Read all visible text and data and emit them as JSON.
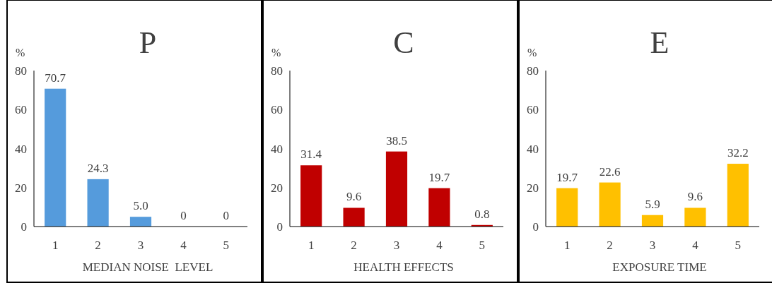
{
  "chart_data": [
    {
      "type": "bar",
      "title": "P",
      "xlabel": "MEDIAN NOISE  LEVEL",
      "ylabel": "%",
      "categories": [
        "1",
        "2",
        "3",
        "4",
        "5"
      ],
      "values": [
        70.7,
        24.3,
        5.0,
        0,
        0
      ],
      "value_labels": [
        "70.7",
        "24.3",
        "5.0",
        "0",
        "0"
      ],
      "color": "#559bdc",
      "ylim": [
        0,
        80
      ],
      "yticks": [
        0,
        20,
        40,
        60,
        80
      ],
      "grid": false
    },
    {
      "type": "bar",
      "title": "C",
      "xlabel": "HEALTH EFFECTS",
      "ylabel": "%",
      "categories": [
        "1",
        "2",
        "3",
        "4",
        "5"
      ],
      "values": [
        31.4,
        9.6,
        38.5,
        19.7,
        0.8
      ],
      "value_labels": [
        "31.4",
        "9.6",
        "38.5",
        "19.7",
        "0.8"
      ],
      "color": "#c00000",
      "ylim": [
        0,
        80
      ],
      "yticks": [
        0,
        20,
        40,
        60,
        80
      ],
      "grid": false
    },
    {
      "type": "bar",
      "title": "E",
      "xlabel": "EXPOSURE TIME",
      "ylabel": "%",
      "categories": [
        "1",
        "2",
        "3",
        "4",
        "5"
      ],
      "values": [
        19.7,
        22.6,
        5.9,
        9.6,
        32.2
      ],
      "value_labels": [
        "19.7",
        "22.6",
        "5.9",
        "9.6",
        "32.2"
      ],
      "color": "#ffc000",
      "ylim": [
        0,
        80
      ],
      "yticks": [
        0,
        20,
        40,
        60,
        80
      ],
      "grid": false
    }
  ]
}
